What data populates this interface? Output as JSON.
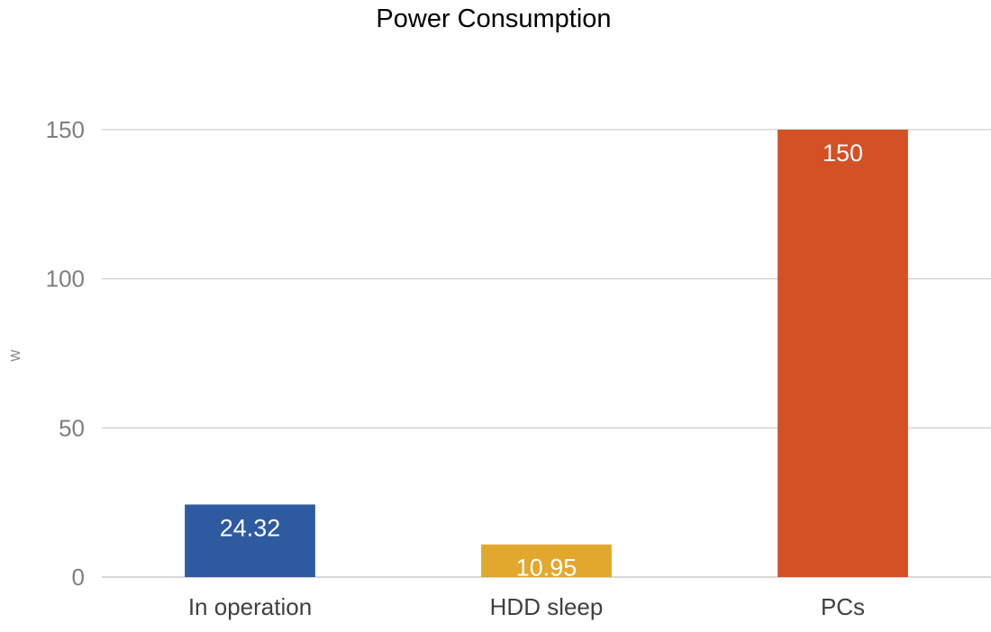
{
  "chart_data": {
    "type": "bar",
    "title": "Power Consumption",
    "xlabel": "",
    "ylabel": "w",
    "categories": [
      "In operation",
      "HDD sleep",
      "PCs"
    ],
    "values": [
      24.32,
      10.95,
      150
    ],
    "data_labels": [
      "24.32",
      "10.95",
      "150"
    ],
    "colors": [
      "#2e5aa0",
      "#e2a82d",
      "#d35124"
    ],
    "ylim": [
      0,
      150
    ],
    "yticks": [
      0,
      50,
      100,
      150
    ],
    "grid": true,
    "legend": "none"
  }
}
